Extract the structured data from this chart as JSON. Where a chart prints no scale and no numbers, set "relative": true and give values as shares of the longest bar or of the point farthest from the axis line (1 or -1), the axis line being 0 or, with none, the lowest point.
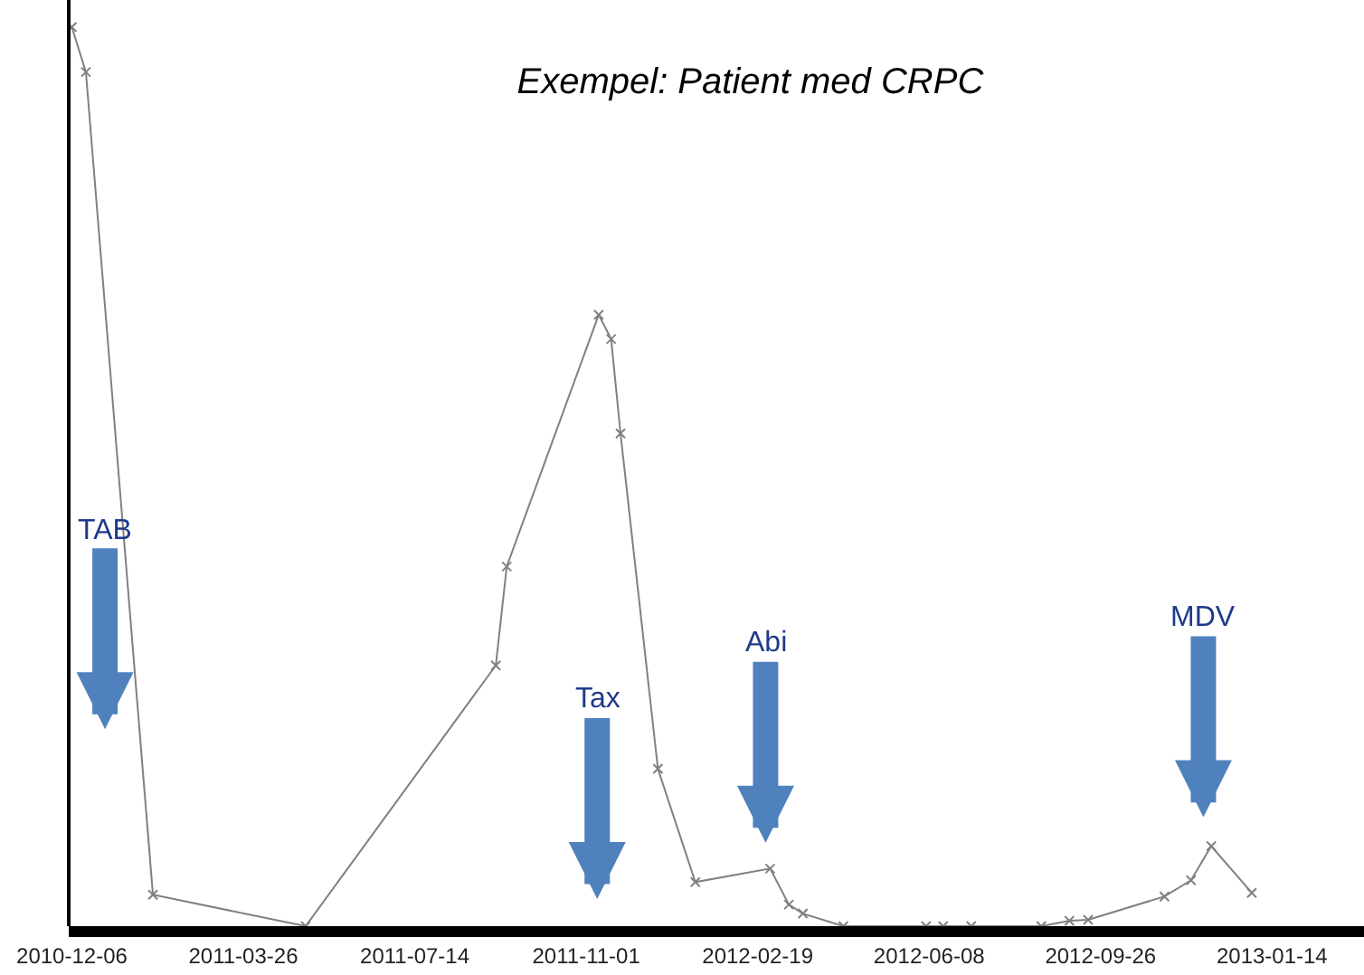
{
  "chart_data": {
    "type": "line",
    "title": "Exempel: Patient med CRPC",
    "relative": true,
    "x": [
      "2010-12-06",
      "2010-12-15",
      "2011-01-27",
      "2011-05-05",
      "2011-09-04",
      "2011-09-11",
      "2011-11-09",
      "2011-11-17",
      "2011-11-23",
      "2011-12-17",
      "2012-01-10",
      "2012-02-27",
      "2012-03-10",
      "2012-03-19",
      "2012-04-14",
      "2012-06-06",
      "2012-06-17",
      "2012-07-05",
      "2012-08-19",
      "2012-09-06",
      "2012-09-18",
      "2012-11-06",
      "2012-11-23",
      "2012-12-06",
      "2013-01-01"
    ],
    "series": [
      {
        "color": "#808080",
        "values": [
          1.0,
          0.95,
          0.035,
          0.0,
          0.29,
          0.4,
          0.68,
          0.653,
          0.548,
          0.175,
          0.049,
          0.064,
          0.024,
          0.014,
          0.0,
          0.0,
          0.0,
          0.0,
          0.0,
          0.006,
          0.007,
          0.033,
          0.051,
          0.089,
          0.037
        ]
      }
    ],
    "marker": "cross",
    "line_style": "solid",
    "xlim": [
      "2010-12-04",
      "2013-03-14"
    ],
    "xticks": [
      "2010-12-06",
      "2011-03-26",
      "2011-07-14",
      "2011-11-01",
      "2012-02-19",
      "2012-06-08",
      "2012-09-26",
      "2013-01-14"
    ],
    "annotations": [
      "TAB",
      "Tax",
      "Abi",
      "MDV"
    ]
  }
}
